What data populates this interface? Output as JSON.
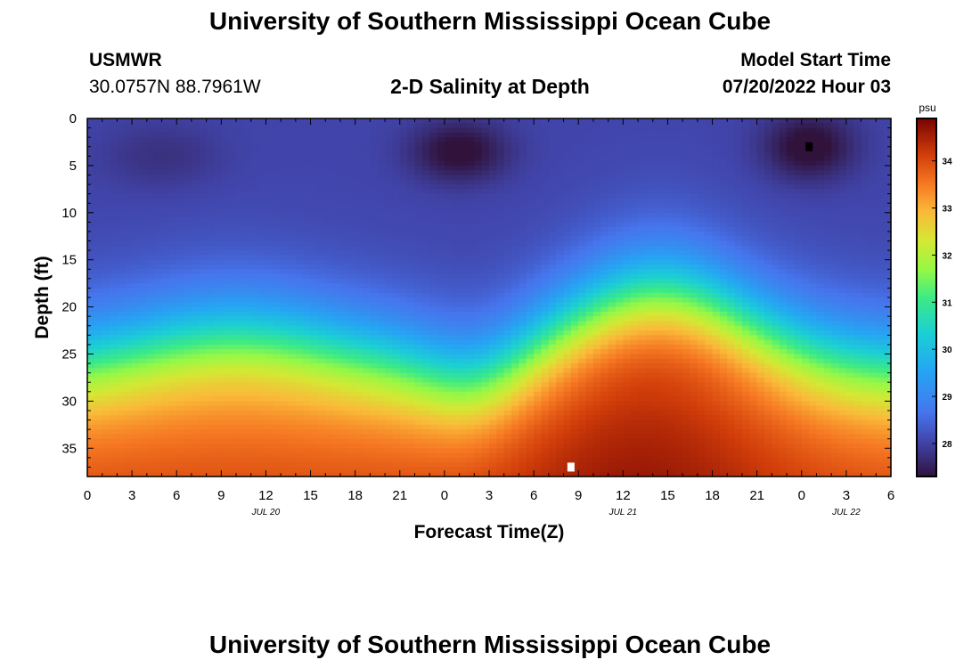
{
  "page": {
    "title_top": "University of Southern Mississippi Ocean Cube",
    "title_bottom": "University of Southern Mississippi Ocean Cube",
    "station_id": "USMWR",
    "station_coords": "30.0757N  88.7961W",
    "center_title": "2-D Salinity at Depth",
    "model_start_label": "Model Start Time",
    "model_start_value": "07/20/2022 Hour 03"
  },
  "chart_data": {
    "type": "heatmap",
    "title": "2-D Salinity at Depth",
    "xlabel": "Forecast Time(Z)",
    "ylabel": "Depth (ft)",
    "x_range_hours": [
      0,
      54
    ],
    "y_range_ft": [
      0,
      38
    ],
    "x_tick_labels": [
      "0",
      "3",
      "6",
      "9",
      "12",
      "15",
      "18",
      "21",
      "0",
      "3",
      "6",
      "9",
      "12",
      "15",
      "18",
      "21",
      "0",
      "3",
      "6"
    ],
    "y_tick_labels": [
      "0",
      "5",
      "10",
      "15",
      "20",
      "25",
      "30",
      "35"
    ],
    "y_tick_values": [
      0,
      5,
      10,
      15,
      20,
      25,
      30,
      35
    ],
    "date_labels": [
      {
        "text": "JUL 20",
        "hour": 12
      },
      {
        "text": "JUL 21",
        "hour": 36
      },
      {
        "text": "JUL 22",
        "hour": 51
      }
    ],
    "colorbar": {
      "unit": "psu",
      "min": 27.3,
      "max": 34.9,
      "tick_labels": [
        "28",
        "29",
        "30",
        "31",
        "32",
        "33",
        "34"
      ],
      "tick_values": [
        28,
        29,
        30,
        31,
        32,
        33,
        34
      ]
    },
    "markers": [
      {
        "name": "min-salinity-marker",
        "hour": 48.5,
        "depth": 3,
        "color": "#000000"
      },
      {
        "name": "max-salinity-marker",
        "hour": 32.5,
        "depth": 37,
        "color": "#ffffff"
      }
    ]
  }
}
